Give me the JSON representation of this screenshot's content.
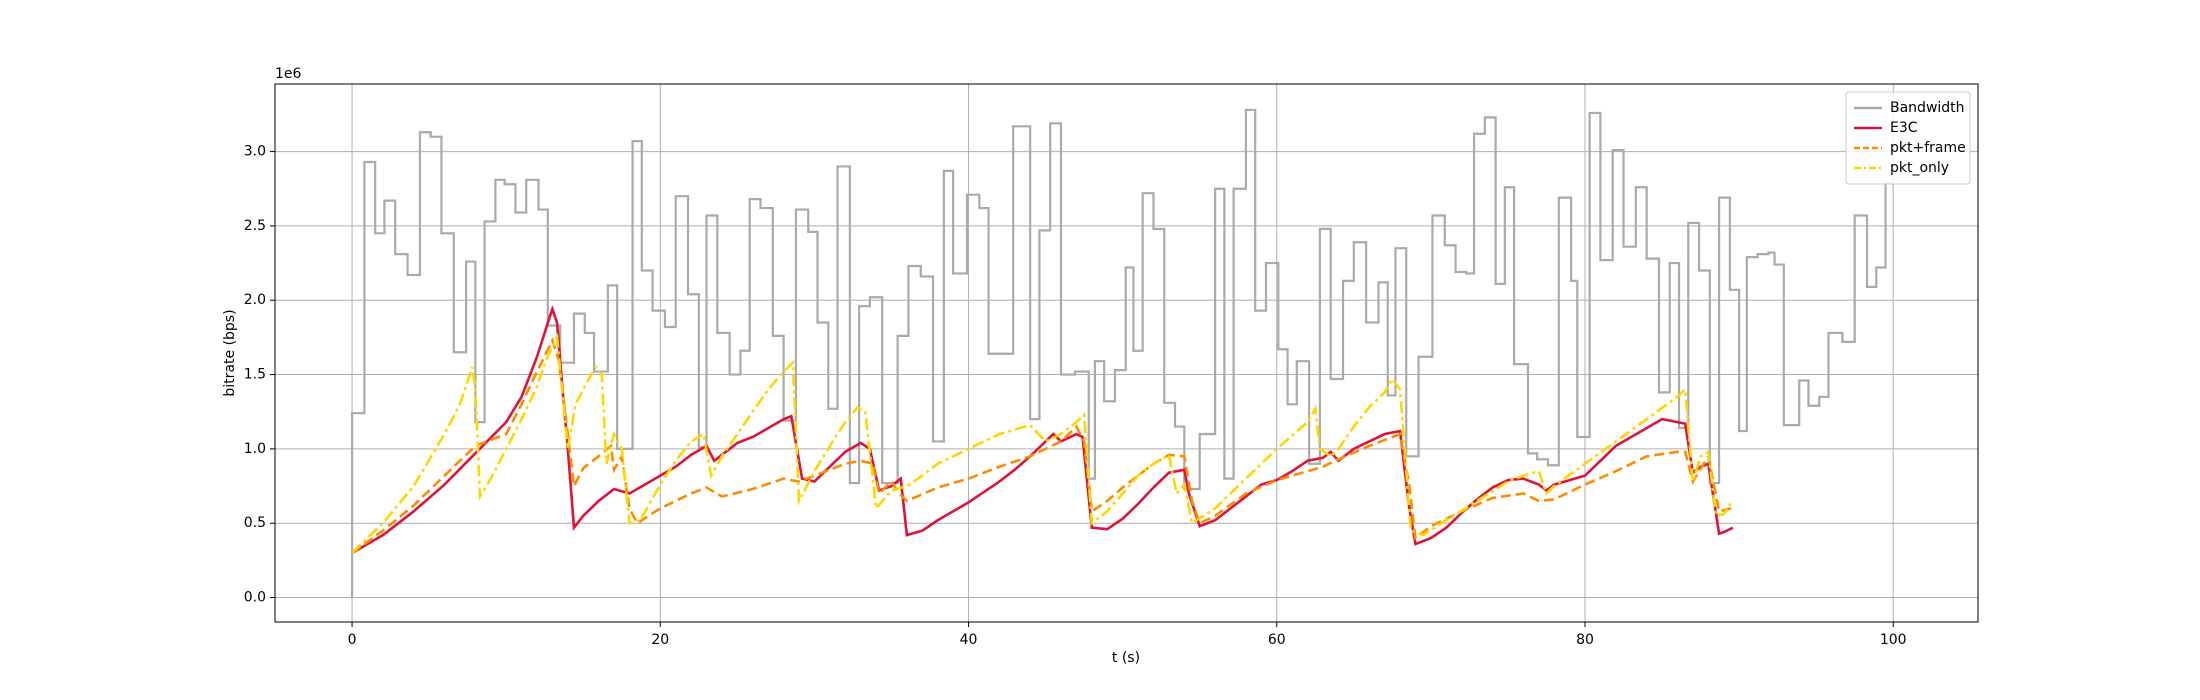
{
  "chart_data": {
    "type": "line",
    "xlabel": "t (s)",
    "ylabel": "bitrate (bps)",
    "y_offset_label": "1e6",
    "xlim": [
      -5,
      105.5
    ],
    "ylim": [
      -164500,
      3454500
    ],
    "xticks": [
      0,
      20,
      40,
      60,
      80,
      100
    ],
    "yticks": [
      {
        "value": 0,
        "label": "0.0"
      },
      {
        "value": 500000,
        "label": "0.5"
      },
      {
        "value": 1000000,
        "label": "1.0"
      },
      {
        "value": 1500000,
        "label": "1.5"
      },
      {
        "value": 2000000,
        "label": "2.0"
      },
      {
        "value": 2500000,
        "label": "2.5"
      },
      {
        "value": 3000000,
        "label": "3.0"
      }
    ],
    "grid": true,
    "legend": "upper right",
    "series": [
      {
        "name": "Bandwidth",
        "color": "#aaaaaa",
        "linestyle": "solid",
        "step": "post",
        "x": [
          0,
          0,
          0.8,
          1.5,
          2.1,
          2.8,
          3.6,
          4.4,
          5.1,
          5.8,
          6.6,
          7.4,
          8.0,
          8.6,
          9.3,
          9.9,
          10.6,
          11.3,
          12.1,
          12.7,
          13.5,
          14.4,
          15.1,
          15.7,
          16.6,
          17.2,
          18.2,
          18.8,
          19.5,
          20.3,
          21.0,
          21.8,
          22.5,
          23.0,
          23.7,
          24.5,
          25.2,
          25.8,
          26.5,
          27.3,
          28.0,
          28.8,
          29.6,
          30.2,
          30.9,
          31.5,
          32.3,
          32.9,
          33.6,
          34.4,
          35.4,
          36.1,
          36.9,
          37.7,
          38.4,
          39.0,
          39.9,
          40.7,
          41.3,
          42.9,
          44.0,
          44.6,
          45.3,
          46.0,
          46.9,
          47.8,
          48.2,
          48.8,
          49.5,
          50.2,
          50.7,
          51.3,
          52.0,
          52.7,
          53.4,
          54.0,
          55.0,
          56.0,
          56.6,
          57.2,
          58.0,
          58.6,
          59.3,
          60.1,
          60.7,
          61.3,
          62.1,
          62.8,
          63.5,
          64.3,
          65.0,
          65.8,
          66.6,
          67.2,
          67.7,
          68.4,
          69.2,
          70.1,
          70.9,
          71.6,
          72.3,
          72.8,
          73.5,
          74.2,
          74.8,
          75.4,
          76.3,
          76.9,
          77.6,
          78.3,
          79.1,
          79.5,
          80.3,
          81.0,
          81.8,
          82.5,
          83.3,
          84.0,
          84.8,
          85.5,
          86.1,
          86.7,
          87.4,
          88.1,
          88.7,
          89.4,
          90.0,
          90.5,
          91.2,
          91.9,
          92.3,
          92.9,
          93.9,
          94.5,
          95.2,
          95.8,
          96.7,
          97.5,
          98.3,
          98.9,
          99.5,
          100.0
        ],
        "values": [
          0,
          1240000,
          2930000,
          2450000,
          2670000,
          2310000,
          2170000,
          3130000,
          3100000,
          2450000,
          1650000,
          2260000,
          1180000,
          2530000,
          2810000,
          2780000,
          2590000,
          2810000,
          2610000,
          1830000,
          1580000,
          1910000,
          1780000,
          1520000,
          2100000,
          1000000,
          3070000,
          2200000,
          1930000,
          1820000,
          2700000,
          2040000,
          1010000,
          2570000,
          1780000,
          1500000,
          1660000,
          2680000,
          2620000,
          1760000,
          1190000,
          2610000,
          2460000,
          1850000,
          1270000,
          2900000,
          770000,
          1960000,
          2020000,
          770000,
          1760000,
          2230000,
          2160000,
          1050000,
          2870000,
          2180000,
          2710000,
          2620000,
          1640000,
          3170000,
          1200000,
          2470000,
          3190000,
          1500000,
          1520000,
          800000,
          1590000,
          1320000,
          1530000,
          2220000,
          1660000,
          2720000,
          2480000,
          1310000,
          1150000,
          730000,
          1100000,
          2750000,
          800000,
          2750000,
          3280000,
          1930000,
          2250000,
          1670000,
          1300000,
          1590000,
          900000,
          2480000,
          1470000,
          2130000,
          2390000,
          1850000,
          2120000,
          1360000,
          2350000,
          950000,
          1620000,
          2570000,
          2370000,
          2190000,
          2180000,
          3120000,
          3230000,
          2110000,
          2760000,
          1570000,
          970000,
          930000,
          890000,
          2690000,
          2130000,
          1080000,
          3260000,
          2270000,
          3010000,
          2360000,
          2760000,
          2280000,
          1380000,
          2250000,
          1140000,
          2520000,
          2200000,
          770000,
          2690000,
          2070000,
          1120000,
          2290000,
          2310000,
          2320000,
          2240000,
          1160000,
          1460000,
          1290000,
          1350000,
          1780000,
          1720000,
          2570000,
          2090000,
          2220000,
          2790000,
          2790000
        ]
      },
      {
        "name": "E3C",
        "color": "#dc143c",
        "linestyle": "solid",
        "x": [
          0,
          2,
          4,
          6,
          8,
          10,
          11,
          12,
          12.8,
          13.0,
          13.3,
          13.7,
          14.0,
          14.4,
          15,
          16,
          17,
          18,
          19,
          20,
          21,
          22,
          23,
          23.5,
          24,
          25,
          26,
          27,
          28,
          28.5,
          29.2,
          30,
          31,
          32,
          33,
          33.6,
          34.2,
          35,
          35.6,
          36,
          37,
          38,
          40,
          42,
          43,
          44,
          45,
          45.5,
          46,
          47,
          47.4,
          48,
          49,
          50,
          51,
          52,
          53,
          54,
          54.3,
          55,
          56,
          57,
          58,
          59,
          60,
          61,
          62,
          63,
          63.5,
          64,
          65,
          66,
          67,
          68,
          68.6,
          69,
          70,
          71,
          72,
          73,
          74,
          75,
          76,
          77,
          77.5,
          78,
          79,
          80,
          81,
          82,
          83,
          84,
          85,
          86,
          86.5,
          87,
          87.5,
          88,
          88.7,
          89,
          89.6
        ],
        "values": [
          300000,
          420000,
          580000,
          760000,
          970000,
          1180000,
          1350000,
          1620000,
          1880000,
          1940000,
          1850000,
          1350000,
          1000000,
          470000,
          550000,
          650000,
          730000,
          700000,
          760000,
          820000,
          880000,
          960000,
          1020000,
          920000,
          960000,
          1040000,
          1080000,
          1140000,
          1200000,
          1220000,
          800000,
          780000,
          880000,
          980000,
          1040000,
          1000000,
          720000,
          750000,
          800000,
          420000,
          450000,
          520000,
          640000,
          780000,
          860000,
          950000,
          1050000,
          1100000,
          1050000,
          1100000,
          1080000,
          470000,
          460000,
          530000,
          630000,
          740000,
          840000,
          860000,
          700000,
          480000,
          520000,
          600000,
          680000,
          760000,
          790000,
          850000,
          920000,
          940000,
          980000,
          920000,
          1000000,
          1050000,
          1100000,
          1120000,
          600000,
          360000,
          400000,
          470000,
          570000,
          660000,
          740000,
          790000,
          800000,
          760000,
          720000,
          760000,
          790000,
          820000,
          920000,
          1020000,
          1080000,
          1140000,
          1200000,
          1180000,
          1170000,
          840000,
          880000,
          900000,
          430000,
          440000,
          470000
        ]
      },
      {
        "name": "pkt+frame",
        "color": "#ff8c00",
        "linestyle": "dashed",
        "x": [
          0,
          2,
          4,
          6,
          8,
          10,
          11,
          12,
          13,
          13.4,
          14,
          14.4,
          15,
          16,
          16.8,
          17,
          17.5,
          18,
          18.5,
          20,
          22,
          23,
          24,
          26,
          28,
          29,
          30,
          32,
          33,
          33.8,
          34.2,
          35,
          35.5,
          36,
          38,
          40,
          42,
          44,
          45,
          46,
          47,
          47.5,
          48,
          49,
          50,
          51,
          52,
          53,
          54,
          54.5,
          55,
          56,
          58,
          60,
          62,
          63,
          64,
          66,
          68,
          68.6,
          69,
          70,
          72,
          74,
          76,
          77,
          78,
          80,
          82,
          84,
          86,
          86.5,
          87,
          88,
          88.7,
          89.5
        ],
        "values": [
          300000,
          450000,
          620000,
          820000,
          1020000,
          1100000,
          1300000,
          1520000,
          1730000,
          1600000,
          1100000,
          750000,
          870000,
          950000,
          1020000,
          860000,
          950000,
          600000,
          500000,
          600000,
          700000,
          740000,
          680000,
          730000,
          800000,
          780000,
          820000,
          900000,
          920000,
          900000,
          700000,
          780000,
          700000,
          650000,
          740000,
          800000,
          880000,
          950000,
          1000000,
          1050000,
          1150000,
          1050000,
          580000,
          650000,
          740000,
          820000,
          900000,
          960000,
          950000,
          650000,
          500000,
          550000,
          700000,
          790000,
          850000,
          880000,
          930000,
          1020000,
          1100000,
          750000,
          400000,
          480000,
          580000,
          670000,
          700000,
          650000,
          660000,
          760000,
          850000,
          950000,
          980000,
          980000,
          780000,
          950000,
          580000,
          600000
        ]
      },
      {
        "name": "pkt_only",
        "color": "#ffd700",
        "linestyle": "dashdot",
        "x": [
          0,
          2,
          4,
          6,
          7,
          7.8,
          8,
          8.3,
          9,
          10,
          11,
          12,
          12.6,
          13.3,
          14,
          14.5,
          15,
          15.8,
          16.2,
          16.5,
          17,
          17.5,
          18,
          18.7,
          20,
          21,
          22,
          22.8,
          23.3,
          24,
          25,
          26,
          27,
          28,
          28.6,
          29,
          30,
          31,
          32,
          32.8,
          33.3,
          34,
          35,
          36,
          37,
          38,
          40,
          42,
          44,
          45,
          46,
          47,
          47.5,
          48,
          49,
          50,
          51,
          52,
          53,
          53.5,
          54,
          54.5,
          56,
          58,
          60,
          62,
          62.5,
          62.8,
          63.5,
          64,
          65,
          66,
          67,
          67.5,
          68,
          68.7,
          69.5,
          71,
          73,
          75,
          76,
          77,
          77.5,
          78,
          80,
          82,
          84,
          86,
          86.5,
          87,
          87.5,
          88,
          88.5,
          89,
          89.5
        ],
        "values": [
          300000,
          500000,
          750000,
          1100000,
          1300000,
          1550000,
          1400000,
          680000,
          800000,
          1000000,
          1200000,
          1420000,
          1600000,
          1750000,
          1000000,
          1300000,
          1400000,
          1550000,
          1500000,
          900000,
          1100000,
          1000000,
          500000,
          520000,
          760000,
          920000,
          1050000,
          1100000,
          820000,
          950000,
          1100000,
          1250000,
          1400000,
          1520000,
          1580000,
          650000,
          850000,
          1020000,
          1180000,
          1280000,
          1250000,
          600000,
          720000,
          750000,
          820000,
          900000,
          1000000,
          1100000,
          1160000,
          1050000,
          1100000,
          1180000,
          1230000,
          500000,
          580000,
          700000,
          820000,
          900000,
          960000,
          700000,
          760000,
          500000,
          600000,
          800000,
          1000000,
          1180000,
          1270000,
          1000000,
          950000,
          1000000,
          1150000,
          1280000,
          1380000,
          1470000,
          1400000,
          450000,
          420000,
          520000,
          650000,
          780000,
          820000,
          850000,
          700000,
          750000,
          900000,
          1050000,
          1200000,
          1350000,
          1400000,
          780000,
          950000,
          980000,
          550000,
          560000,
          640000
        ]
      }
    ]
  }
}
